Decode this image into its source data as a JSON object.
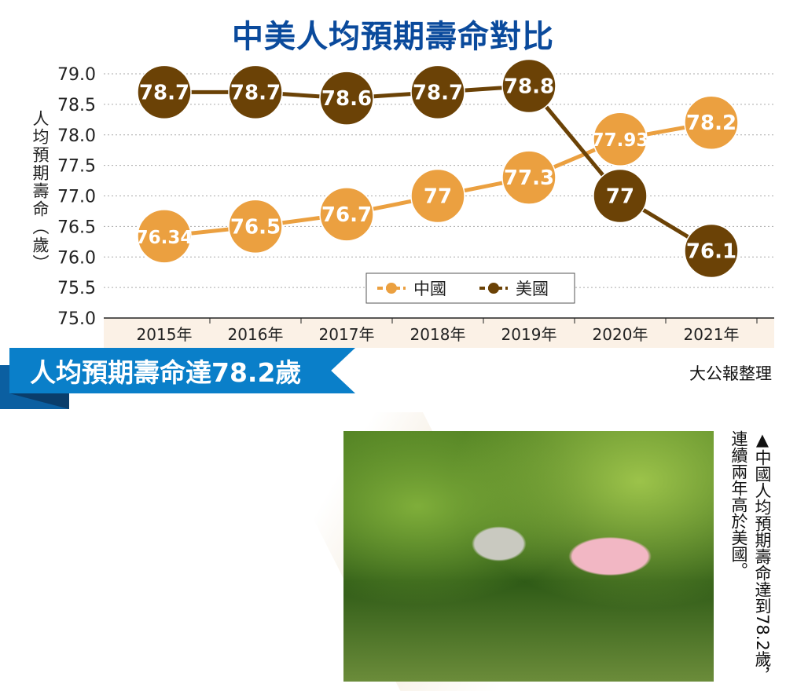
{
  "chart_data": {
    "type": "line",
    "title": "中美人均預期壽命對比",
    "ylabel": "人均預期壽命（歲）",
    "xlabel": "",
    "categories": [
      "2015年",
      "2016年",
      "2017年",
      "2018年",
      "2019年",
      "2020年",
      "2021年"
    ],
    "ylim": [
      75.0,
      79.0
    ],
    "yticks": [
      "79.0",
      "78.5",
      "78.0",
      "77.5",
      "77.0",
      "76.5",
      "76.0",
      "75.5",
      "75.0"
    ],
    "grid": true,
    "legend_position": "bottom-center",
    "series": [
      {
        "name": "中國",
        "color": "#eba040",
        "values": [
          76.34,
          76.5,
          76.7,
          77,
          77.3,
          77.93,
          78.2
        ],
        "labels": [
          "76.34",
          "76.5",
          "76.7",
          "77",
          "77.3",
          "77.93",
          "78.2"
        ]
      },
      {
        "name": "美國",
        "color": "#6b4206",
        "values": [
          78.7,
          78.7,
          78.6,
          78.7,
          78.8,
          77,
          76.1
        ],
        "labels": [
          "78.7",
          "78.7",
          "78.6",
          "78.7",
          "78.8",
          "77",
          "76.1"
        ]
      }
    ]
  },
  "banner": "人均預期壽命達78.2歲",
  "source": "大公報整理",
  "caption": "▲中國人均預期壽命達到78.2歲，連續兩年高於美國。"
}
